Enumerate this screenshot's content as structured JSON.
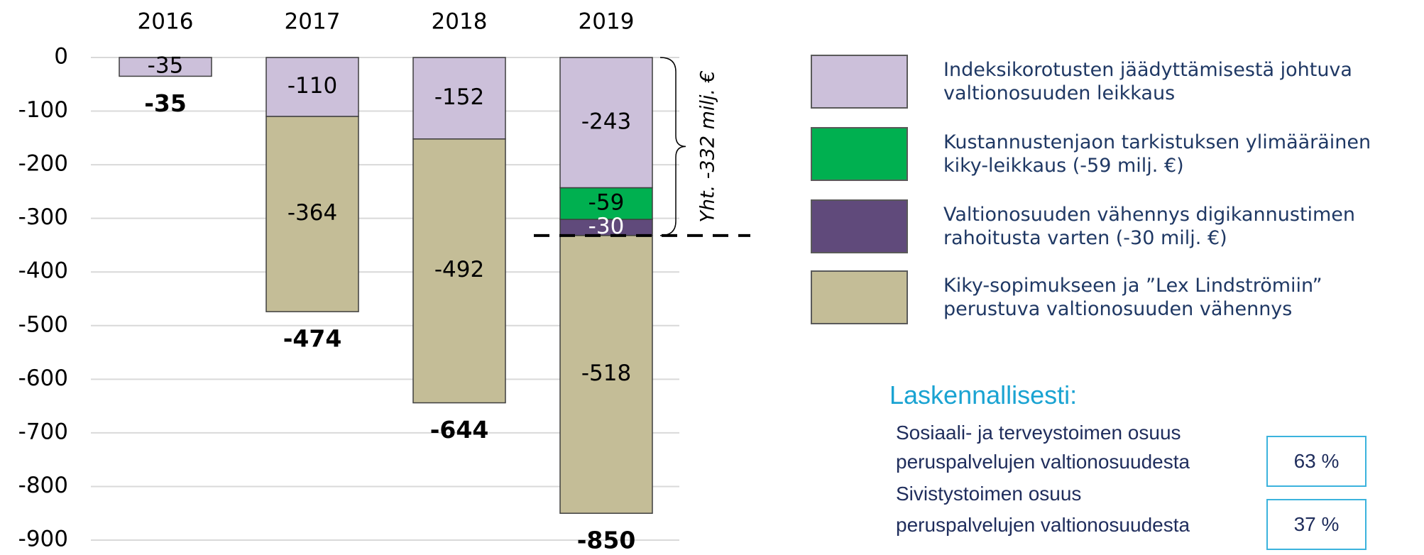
{
  "chart_data": {
    "type": "bar",
    "stacked": true,
    "categories": [
      "2016",
      "2017",
      "2018",
      "2019"
    ],
    "series": [
      {
        "name": "Indeksikorotusten jäädyttämisestä johtuva valtionosuuden leikkaus",
        "color": "#ccc0da",
        "values": [
          -35,
          -110,
          -152,
          -243
        ]
      },
      {
        "name": "Kustannustenjaon tarkistuksen ylimääräinen kiky-leikkaus (-59 milj. €)",
        "color": "#00b050",
        "values": [
          null,
          null,
          null,
          -59
        ]
      },
      {
        "name": "Valtionosuuden vähennys digikannustimen rahoitusta varten (-30 milj. €)",
        "color": "#604a7b",
        "values": [
          null,
          null,
          null,
          -30
        ]
      },
      {
        "name": "Kiky-sopimukseen ja ”Lex Lindströmiin” perustuva valtionosuuden vähennys",
        "color": "#c4bd97",
        "values": [
          null,
          -364,
          -492,
          -518
        ]
      }
    ],
    "totals": [
      -35,
      -474,
      -644,
      -850
    ],
    "ylim": [
      -900,
      0
    ],
    "yticks": [
      0,
      -100,
      -200,
      -300,
      -400,
      -500,
      -600,
      -700,
      -800,
      -900
    ],
    "grid": true,
    "annotation": {
      "text": "Yht. -332 milj. €",
      "value": -332
    }
  },
  "calc": {
    "title": "Laskennallisesti:",
    "rows": [
      {
        "label_lines": [
          "Sosiaali- ja terveystoimen osuus",
          "peruspalvelujen valtionosuudesta"
        ],
        "value": "63 %"
      },
      {
        "label_lines": [
          "Sivistystoimen osuus",
          "peruspalvelujen valtionosuudesta"
        ],
        "value": "37 %"
      }
    ]
  }
}
